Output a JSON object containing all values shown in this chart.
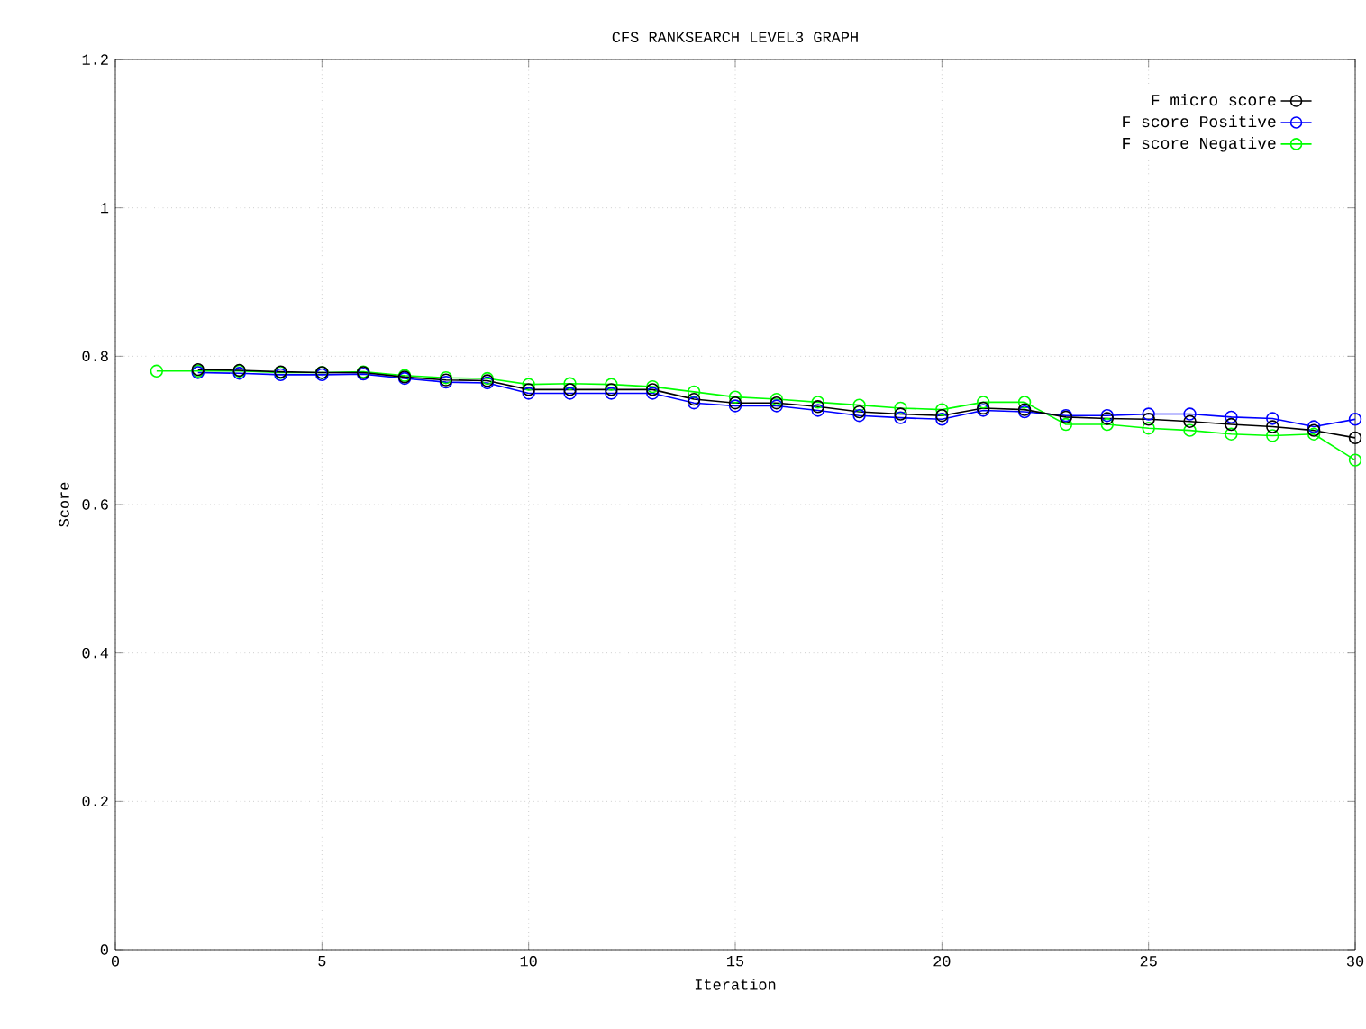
{
  "chart_data": {
    "type": "line",
    "title": "CFS RANKSEARCH LEVEL3 GRAPH",
    "xlabel": "Iteration",
    "ylabel": "Score",
    "x": [
      1,
      2,
      3,
      4,
      5,
      6,
      7,
      8,
      9,
      10,
      11,
      12,
      13,
      14,
      15,
      16,
      17,
      18,
      19,
      20,
      21,
      22,
      23,
      24,
      25,
      26,
      27,
      28,
      29,
      30
    ],
    "series": [
      {
        "name": "F micro score",
        "color": "#000000",
        "values": [
          null,
          0.782,
          0.781,
          0.779,
          0.778,
          0.778,
          0.772,
          0.768,
          0.767,
          0.755,
          0.755,
          0.755,
          0.755,
          0.742,
          0.737,
          0.737,
          0.732,
          0.725,
          0.722,
          0.72,
          0.73,
          0.728,
          0.718,
          0.716,
          0.715,
          0.712,
          0.708,
          0.705,
          0.7,
          0.69
        ]
      },
      {
        "name": "F score Positive",
        "color": "#0000ff",
        "values": [
          null,
          0.778,
          0.777,
          0.775,
          0.775,
          0.776,
          0.77,
          0.765,
          0.764,
          0.75,
          0.75,
          0.75,
          0.75,
          0.737,
          0.733,
          0.733,
          0.727,
          0.72,
          0.717,
          0.715,
          0.727,
          0.725,
          0.72,
          0.72,
          0.722,
          0.722,
          0.718,
          0.716,
          0.705,
          0.715
        ]
      },
      {
        "name": "F score Negative",
        "color": "#00ff00",
        "values": [
          0.78,
          0.78,
          0.78,
          0.778,
          0.778,
          0.779,
          0.774,
          0.771,
          0.77,
          0.762,
          0.763,
          0.762,
          0.759,
          0.752,
          0.745,
          0.742,
          0.738,
          0.734,
          0.73,
          0.728,
          0.738,
          0.738,
          0.708,
          0.708,
          0.703,
          0.7,
          0.695,
          0.693,
          0.695,
          0.66
        ]
      }
    ],
    "xlim": [
      0,
      30
    ],
    "ylim": [
      0,
      1.2
    ],
    "xticks": [
      0,
      5,
      10,
      15,
      20,
      25,
      30
    ],
    "yticks": [
      0,
      0.2,
      0.4,
      0.6,
      0.8,
      1,
      1.2
    ],
    "grid": true,
    "legend": "top right",
    "marker": "circle",
    "line_style": "solid"
  }
}
